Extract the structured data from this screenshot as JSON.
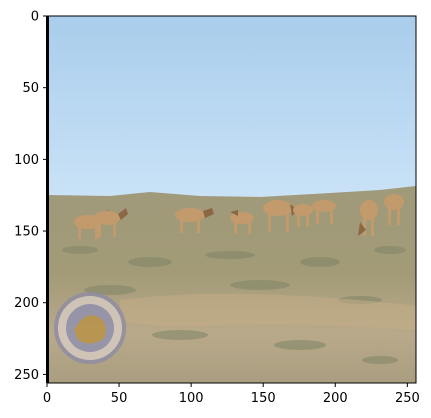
{
  "figure": {
    "image_subject": "herd of wild horses grazing on a dry grassy steppe under a pale blue sky",
    "watermark": "circular emblem seal in lower-left corner",
    "colors": {
      "sky_top": "#a9cdec",
      "sky_bottom": "#cbe3f7",
      "ground_far": "#9f9a7a",
      "ground_near": "#b4a684",
      "horse_coat": "#c29a6c",
      "horse_mane": "#5a3b22"
    }
  },
  "axes": {
    "x_ticks": [
      {
        "value": 0,
        "label": "0"
      },
      {
        "value": 50,
        "label": "50"
      },
      {
        "value": 100,
        "label": "100"
      },
      {
        "value": 150,
        "label": "150"
      },
      {
        "value": 200,
        "label": "200"
      },
      {
        "value": 250,
        "label": "250"
      }
    ],
    "y_ticks": [
      {
        "value": 0,
        "label": "0"
      },
      {
        "value": 50,
        "label": "50"
      },
      {
        "value": 100,
        "label": "100"
      },
      {
        "value": 150,
        "label": "150"
      },
      {
        "value": 200,
        "label": "200"
      },
      {
        "value": 250,
        "label": "250"
      }
    ],
    "xlim": [
      0,
      256
    ],
    "ylim": [
      256,
      0
    ]
  }
}
